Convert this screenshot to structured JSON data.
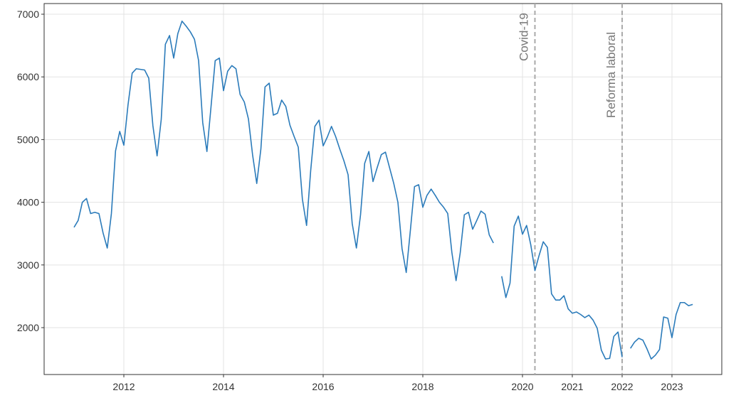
{
  "chart_data": {
    "type": "line",
    "color": "#2b7bba",
    "grid": true,
    "x": [
      2011,
      2011.083,
      2011.167,
      2011.25,
      2011.333,
      2011.417,
      2011.5,
      2011.583,
      2011.667,
      2011.75,
      2011.833,
      2011.917,
      2012,
      2012.083,
      2012.167,
      2012.25,
      2012.333,
      2012.417,
      2012.5,
      2012.583,
      2012.667,
      2012.75,
      2012.833,
      2012.917,
      2013,
      2013.083,
      2013.167,
      2013.25,
      2013.333,
      2013.417,
      2013.5,
      2013.583,
      2013.667,
      2013.75,
      2013.833,
      2013.917,
      2014,
      2014.083,
      2014.167,
      2014.25,
      2014.333,
      2014.417,
      2014.5,
      2014.583,
      2014.667,
      2014.75,
      2014.833,
      2014.917,
      2015,
      2015.083,
      2015.167,
      2015.25,
      2015.333,
      2015.417,
      2015.5,
      2015.583,
      2015.667,
      2015.75,
      2015.833,
      2015.917,
      2016,
      2016.083,
      2016.167,
      2016.25,
      2016.333,
      2016.417,
      2016.5,
      2016.583,
      2016.667,
      2016.75,
      2016.833,
      2016.917,
      2017,
      2017.083,
      2017.167,
      2017.25,
      2017.333,
      2017.417,
      2017.5,
      2017.583,
      2017.667,
      2017.75,
      2017.833,
      2017.917,
      2018,
      2018.083,
      2018.167,
      2018.25,
      2018.333,
      2018.417,
      2018.5,
      2018.583,
      2018.667,
      2018.75,
      2018.833,
      2018.917,
      2019,
      2019.083,
      2019.167,
      2019.25,
      2019.333,
      2019.417,
      2019.5,
      2019.583,
      2019.667,
      2019.75,
      2019.833,
      2019.917,
      2020,
      2020.083,
      2020.167,
      2020.25,
      2020.333,
      2020.417,
      2020.5,
      2020.583,
      2020.667,
      2020.75,
      2020.833,
      2020.917,
      2021,
      2021.083,
      2021.167,
      2021.25,
      2021.333,
      2021.417,
      2021.5,
      2021.583,
      2021.667,
      2021.75,
      2021.833,
      2021.917,
      2022,
      2022.083,
      2022.167,
      2022.25,
      2022.333,
      2022.417,
      2022.5,
      2022.583,
      2022.667,
      2022.75,
      2022.833,
      2022.917,
      2023,
      2023.083,
      2023.167,
      2023.25,
      2023.333,
      2023.417
    ],
    "values": [
      3600,
      3710,
      4000,
      4060,
      3820,
      3840,
      3820,
      3510,
      3270,
      3820,
      4820,
      5130,
      4910,
      5550,
      6060,
      6130,
      6120,
      6110,
      5980,
      5220,
      4740,
      5320,
      6520,
      6660,
      6300,
      6690,
      6890,
      6810,
      6720,
      6600,
      6260,
      5270,
      4810,
      5530,
      6260,
      6300,
      5780,
      6090,
      6180,
      6130,
      5720,
      5600,
      5330,
      4760,
      4300,
      4850,
      5840,
      5900,
      5390,
      5420,
      5630,
      5530,
      5230,
      5050,
      4880,
      4050,
      3630,
      4510,
      5210,
      5310,
      4900,
      5040,
      5210,
      5050,
      4850,
      4660,
      4440,
      3660,
      3270,
      3800,
      4620,
      4810,
      4330,
      4550,
      4760,
      4800,
      4550,
      4300,
      4000,
      3260,
      2880,
      3550,
      4250,
      4280,
      3920,
      4110,
      4210,
      4110,
      4000,
      3920,
      3820,
      3200,
      2750,
      3190,
      3800,
      3840,
      3570,
      3710,
      3860,
      3810,
      3480,
      3350,
      null,
      2820,
      2480,
      2710,
      3620,
      3780,
      3490,
      3630,
      3320,
      2910,
      3150,
      3370,
      3280,
      2540,
      2440,
      2440,
      2510,
      2300,
      2230,
      2250,
      2210,
      2160,
      2200,
      2120,
      1990,
      1640,
      1500,
      1510,
      1860,
      1930,
      1530,
      null,
      1670,
      1770,
      1830,
      1800,
      1660,
      1500,
      1560,
      1650,
      2170,
      2150,
      1840,
      2210,
      2400,
      2400,
      2350,
      2370
    ],
    "xlim": [
      2010.4,
      2024
    ],
    "ylim": [
      1252,
      7170
    ],
    "xticks": [
      2012,
      2014,
      2016,
      2018,
      2020,
      2021,
      2022,
      2023
    ],
    "yticks": [
      2000,
      3000,
      4000,
      5000,
      6000,
      7000
    ],
    "annotations": [
      {
        "x": 2020.25,
        "text": "Covid-19"
      },
      {
        "x": 2022,
        "text": "Reforma laboral"
      }
    ]
  }
}
